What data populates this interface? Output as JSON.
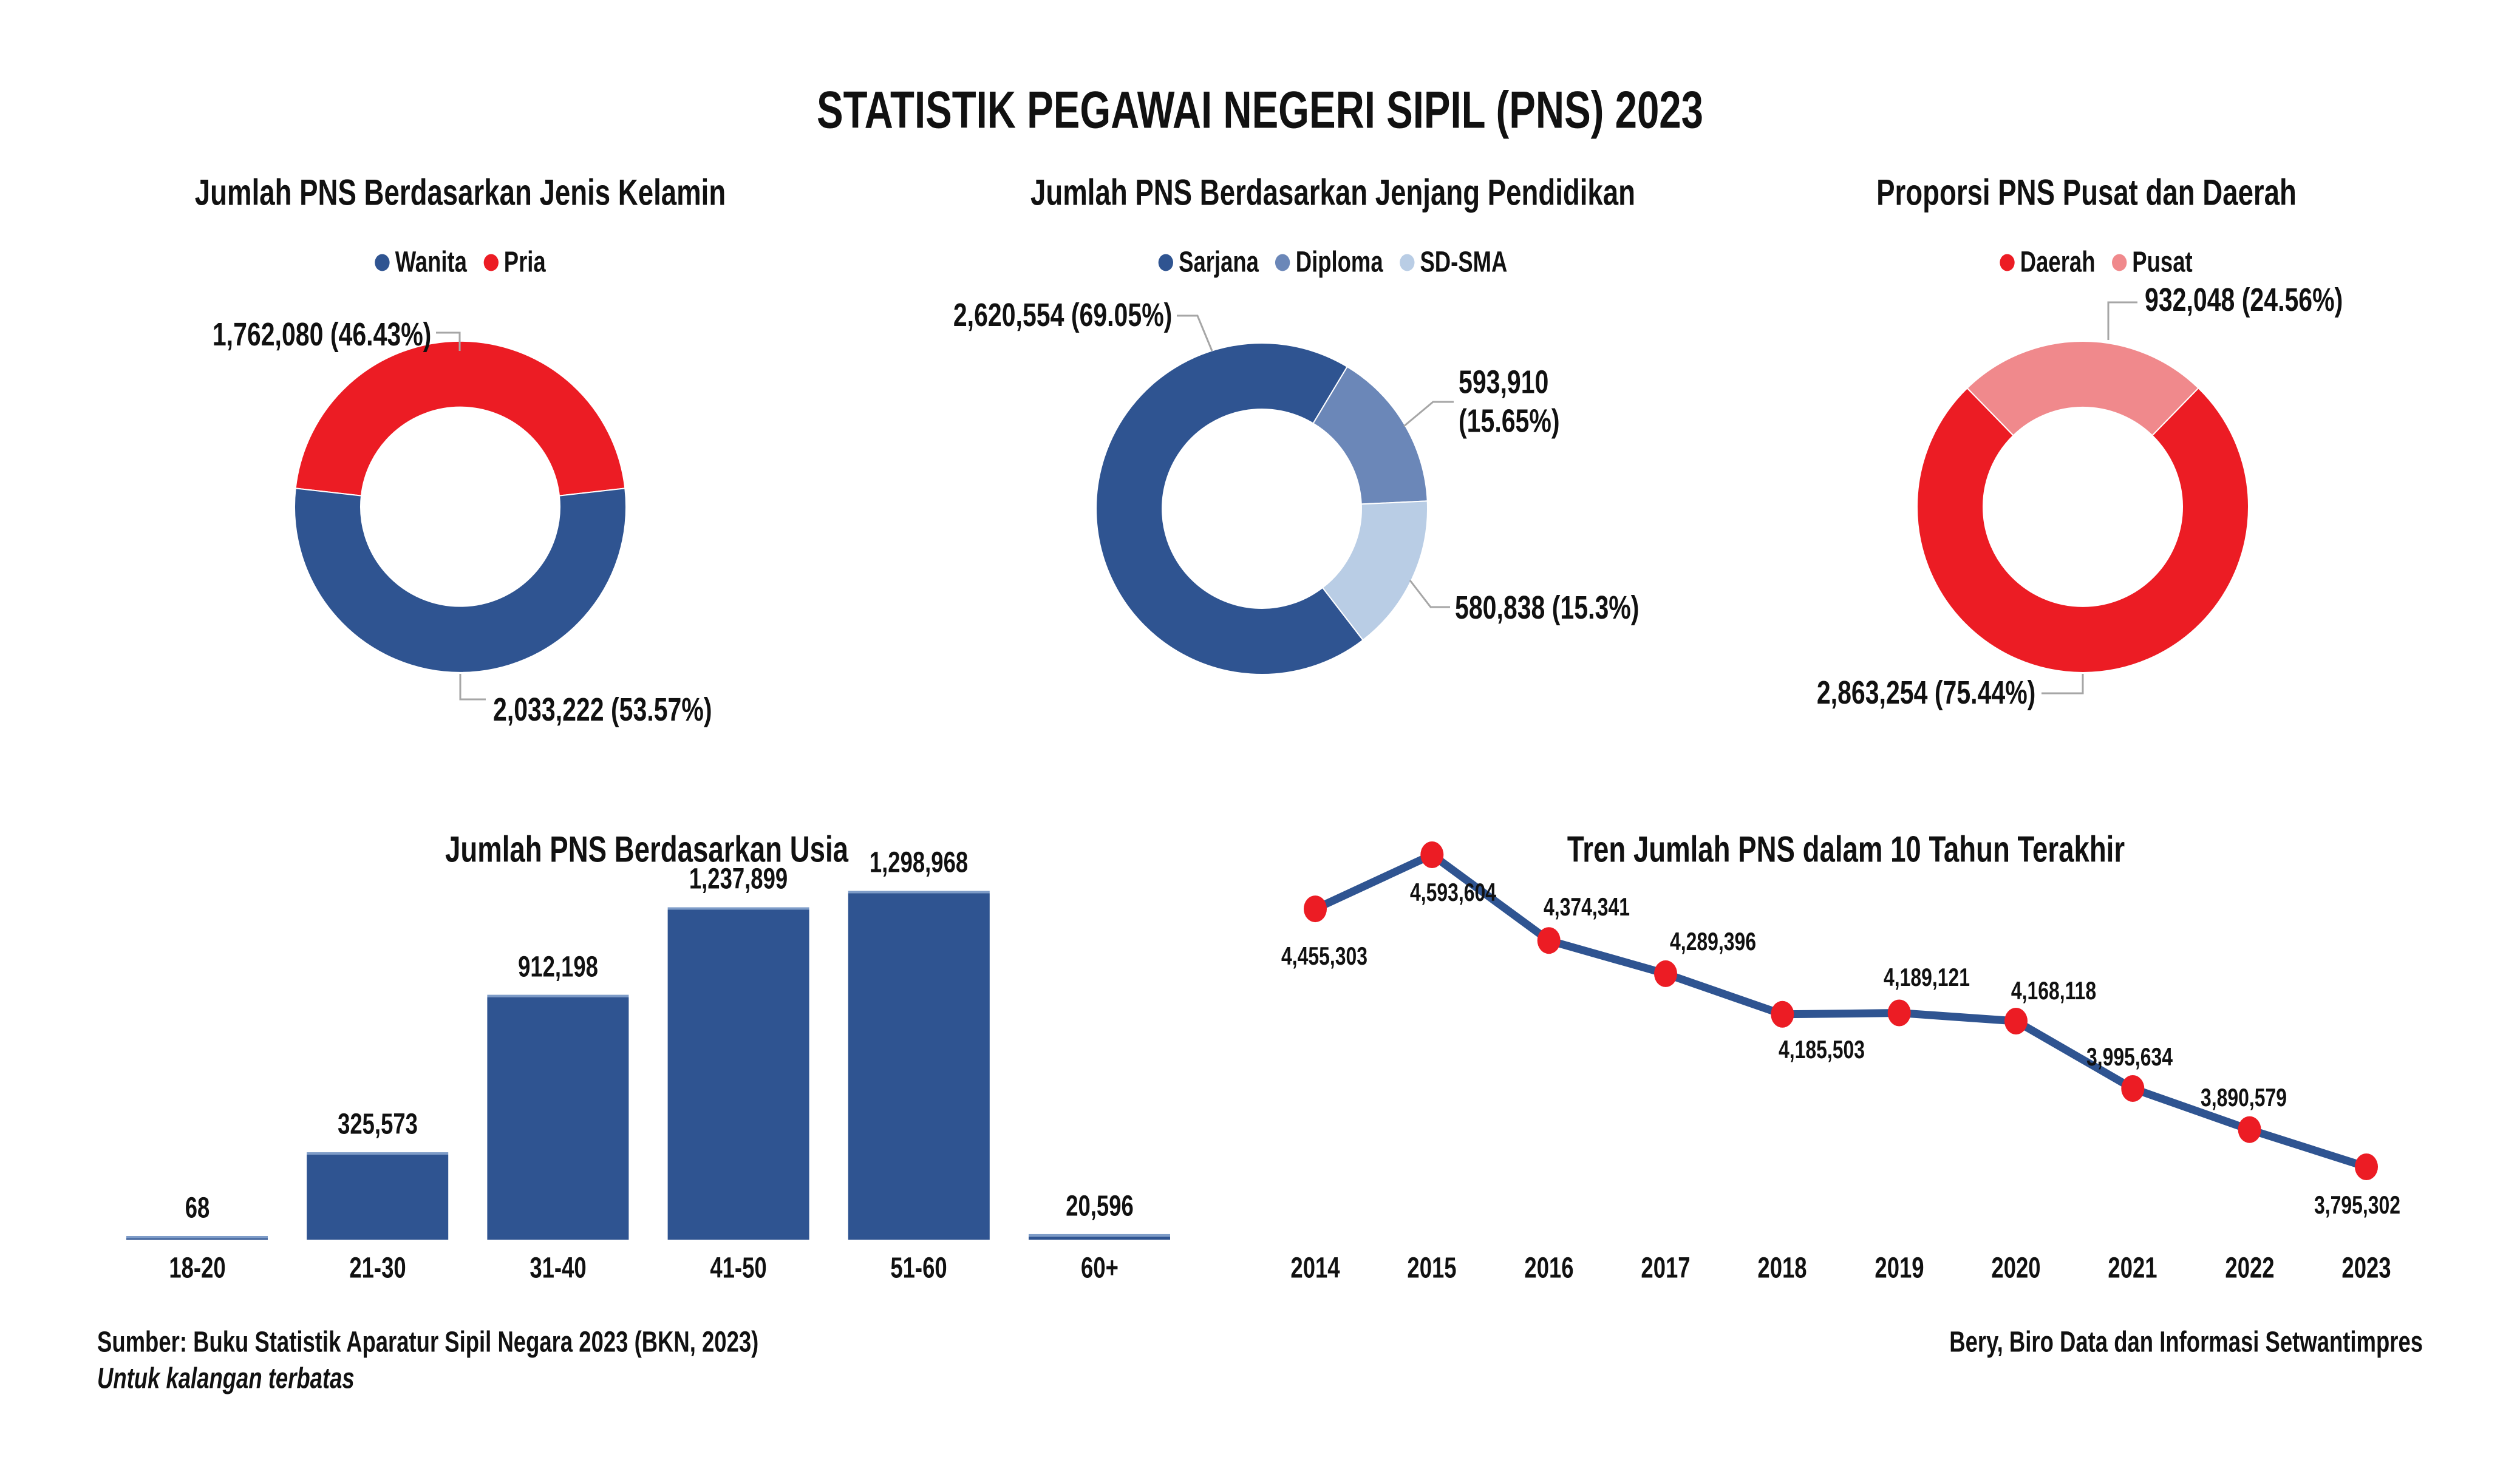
{
  "page": {
    "title": "STATISTIK PEGAWAI NEGERI SIPIL (PNS) 2023",
    "source_line": "Sumber: Buku Statistik Aparatur Sipil Negara 2023 (BKN, 2023)",
    "restricted_line": "Untuk kalangan terbatas",
    "credit_line": "Bery, Biro Data dan Informasi Setwantimpres"
  },
  "colors": {
    "dark_blue": "#2F5491",
    "red": "#EC1C24",
    "medium_blue": "#6B87B8",
    "light_blue": "#B9CDE5",
    "pink": "#F0898C",
    "connector_gray": "#A6A6A6",
    "text": "#111111"
  },
  "chart_data": [
    {
      "type": "pie",
      "title": "Jumlah PNS Berdasarkan Jenis Kelamin",
      "labels": [
        "Wanita",
        "Pria"
      ],
      "values": [
        2033222,
        1762080
      ],
      "pcts": [
        53.57,
        46.43
      ],
      "colors": [
        "#2F5491",
        "#EC1C24"
      ],
      "point_labels": [
        "2,033,222 (53.57%)",
        "1,762,080 (46.43%)"
      ],
      "legend_position": "top",
      "hole": 0.6
    },
    {
      "type": "pie",
      "title": "Jumlah PNS Berdasarkan Jenjang Pendidikan",
      "labels": [
        "Sarjana",
        "Diploma",
        "SD-SMA"
      ],
      "values": [
        2620554,
        593910,
        580838
      ],
      "pcts": [
        69.05,
        15.65,
        15.3
      ],
      "colors": [
        "#2F5491",
        "#6B87B8",
        "#B9CDE5"
      ],
      "point_labels": [
        "2,620,554 (69.05%)",
        "593,910\n(15.65%)",
        "580,838 (15.3%)"
      ],
      "legend_position": "top",
      "hole": 0.6
    },
    {
      "type": "pie",
      "title": "Proporsi PNS Pusat dan Daerah",
      "labels": [
        "Daerah",
        "Pusat"
      ],
      "values": [
        2863254,
        932048
      ],
      "pcts": [
        75.44,
        24.56
      ],
      "colors": [
        "#EC1C24",
        "#F0898C"
      ],
      "point_labels": [
        "2,863,254 (75.44%)",
        "932,048 (24.56%)"
      ],
      "legend_position": "top",
      "hole": 0.6
    },
    {
      "type": "bar",
      "title": "Jumlah PNS Berdasarkan Usia",
      "categories": [
        "18-20",
        "21-30",
        "31-40",
        "41-50",
        "51-60",
        "60+"
      ],
      "values": [
        68,
        325573,
        912198,
        1237899,
        1298968,
        20596
      ],
      "value_labels": [
        "68",
        "325,573",
        "912,198",
        "1,237,899",
        "1,298,968",
        "20,596"
      ],
      "color": "#2F5491",
      "grid": false,
      "ylim": [
        0,
        1400000
      ]
    },
    {
      "type": "line",
      "title": "Tren Jumlah PNS dalam 10 Tahun Terakhir",
      "x": [
        "2014",
        "2015",
        "2016",
        "2017",
        "2018",
        "2019",
        "2020",
        "2021",
        "2022",
        "2023"
      ],
      "values": [
        4455303,
        4593604,
        4374341,
        4289396,
        4185503,
        4189121,
        4168118,
        3995634,
        3890579,
        3795302
      ],
      "value_labels": [
        "4,455,303",
        "4,593,604",
        "4,374,341",
        "4,289,396",
        "4,185,503",
        "4,189,121",
        "4,168,118",
        "3,995,634",
        "3,890,579",
        "3,795,302"
      ],
      "line_color": "#2F5491",
      "marker_color": "#EC1C24",
      "grid": false
    }
  ]
}
